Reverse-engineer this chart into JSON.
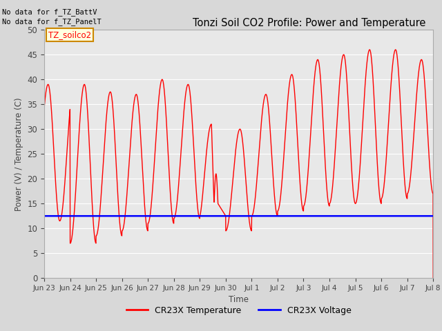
{
  "title": "Tonzi Soil CO2 Profile: Power and Temperature",
  "ylabel": "Power (V) / Temperature (C)",
  "xlabel": "Time",
  "annotation_lines": [
    "No data for f_TZ_BattV",
    "No data for f_TZ_PanelT"
  ],
  "legend_label_box": "TZ_soilco2",
  "ylim": [
    0,
    50
  ],
  "yticks": [
    0,
    5,
    10,
    15,
    20,
    25,
    30,
    35,
    40,
    45,
    50
  ],
  "xtick_labels": [
    "Jun 23",
    "Jun 24",
    "Jun 25",
    "Jun 26",
    "Jun 27",
    "Jun 28",
    "Jun 29",
    "Jun 30",
    "Jul 1",
    "Jul 2",
    "Jul 3",
    "Jul 4",
    "Jul 5",
    "Jul 6",
    "Jul 7",
    "Jul 8"
  ],
  "voltage_value": 12.5,
  "temp_color": "#ff0000",
  "voltage_color": "#0000ff",
  "temp_label": "CR23X Temperature",
  "voltage_label": "CR23X Voltage",
  "bg_color": "#d8d8d8",
  "plot_bg_color": "#e8e8e8",
  "grid_color": "#ffffff",
  "peaks": [
    14.0,
    39.0,
    12.0,
    37.5,
    12.0,
    37.0,
    12.5,
    40.0,
    12.0,
    39.0,
    12.0,
    37.0,
    12.0,
    31.0,
    12.0,
    21.0,
    12.0,
    29.5,
    12.5,
    36.5,
    12.0,
    41.0,
    12.5,
    44.0,
    12.5,
    45.0,
    12.5,
    46.0,
    12.5,
    46.0,
    12.5,
    44.0,
    17.0
  ],
  "troughs": [
    11.5,
    7.0,
    8.5,
    9.5,
    11.0,
    12.0,
    12.5,
    9.0,
    12.5,
    14.0,
    15.5,
    15.5,
    16.5,
    17.0
  ]
}
